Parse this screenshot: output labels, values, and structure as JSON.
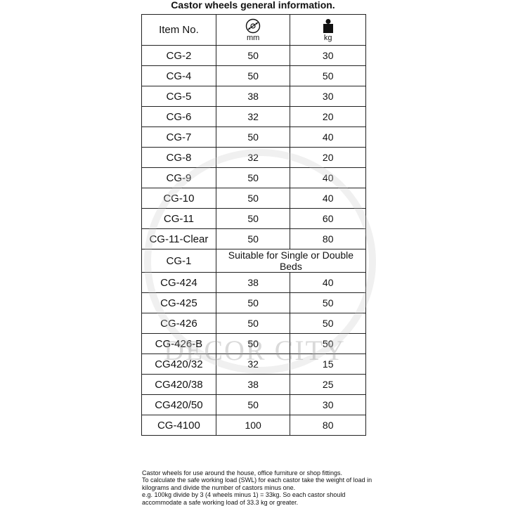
{
  "title": "Castor wheels general information.",
  "header": {
    "item": "Item No.",
    "diameter_icon": "wheel-diameter-icon",
    "diameter_unit": "mm",
    "weight_icon": "weight-icon",
    "weight_unit": "kg"
  },
  "rows": [
    {
      "item": "CG-2",
      "mm": "50",
      "kg": "30"
    },
    {
      "item": "CG-4",
      "mm": "50",
      "kg": "50"
    },
    {
      "item": "CG-5",
      "mm": "38",
      "kg": "30"
    },
    {
      "item": "CG-6",
      "mm": "32",
      "kg": "20"
    },
    {
      "item": "CG-7",
      "mm": "50",
      "kg": "40"
    },
    {
      "item": "CG-8",
      "mm": "32",
      "kg": "20"
    },
    {
      "item": "CG-9",
      "mm": "50",
      "kg": "40"
    },
    {
      "item": "CG-10",
      "mm": "50",
      "kg": "40"
    },
    {
      "item": "CG-11",
      "mm": "50",
      "kg": "60"
    },
    {
      "item": "CG-11-Clear",
      "mm": "50",
      "kg": "80"
    },
    {
      "item": "CG-1",
      "note": "Suitable for Single or Double Beds"
    },
    {
      "item": "CG-424",
      "mm": "38",
      "kg": "40"
    },
    {
      "item": "CG-425",
      "mm": "50",
      "kg": "50"
    },
    {
      "item": "CG-426",
      "mm": "50",
      "kg": "50"
    },
    {
      "item": "CG-426-B",
      "mm": "50",
      "kg": "50"
    },
    {
      "item": "CG420/32",
      "mm": "32",
      "kg": "15"
    },
    {
      "item": "CG420/38",
      "mm": "38",
      "kg": "25"
    },
    {
      "item": "CG420/50",
      "mm": "50",
      "kg": "30"
    },
    {
      "item": "CG-4100",
      "mm": "100",
      "kg": "80"
    }
  ],
  "notes": [
    "Castor wheels for use around the house, office furniture or shop fittings.",
    "To calculate the safe working load (SWL) for each castor take the weight of load in kilograms and divide the number of castors minus one.",
    "e.g. 100kg divide by 3 (4 wheels minus 1) = 33kg. So each castor should accommodate a safe working load of 33.3 kg or greater."
  ],
  "watermark": "DECOR CITY"
}
